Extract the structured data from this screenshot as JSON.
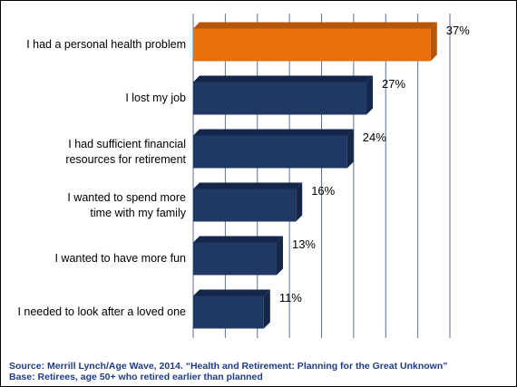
{
  "chart_data": {
    "type": "bar",
    "orientation": "horizontal",
    "categories": [
      [
        "I had a personal health problem"
      ],
      [
        "I lost my job"
      ],
      [
        "I had sufficient financial",
        "resources for retirement"
      ],
      [
        "I wanted to spend more",
        "time with my family"
      ],
      [
        "I wanted to have more fun"
      ],
      [
        "I needed to look after a loved one"
      ]
    ],
    "values": [
      37,
      27,
      24,
      16,
      13,
      11
    ],
    "value_labels": [
      "37%",
      "27%",
      "24%",
      "16%",
      "13%",
      "11%"
    ],
    "xlim": [
      0,
      40
    ],
    "grid": "vertical",
    "colors": {
      "highlight": "#e8700a",
      "highlight_top": "#b5560a",
      "bar": "#1f3864",
      "bar_top": "#14264a",
      "grid": "#5b6f9a"
    }
  },
  "footer": {
    "source": "Source: Merrill Lynch/Age Wave, 2014. “Health and Retirement: Planning for the Great Unknown”",
    "base": "Base: Retirees, age 50+ who retired earlier than planned"
  }
}
